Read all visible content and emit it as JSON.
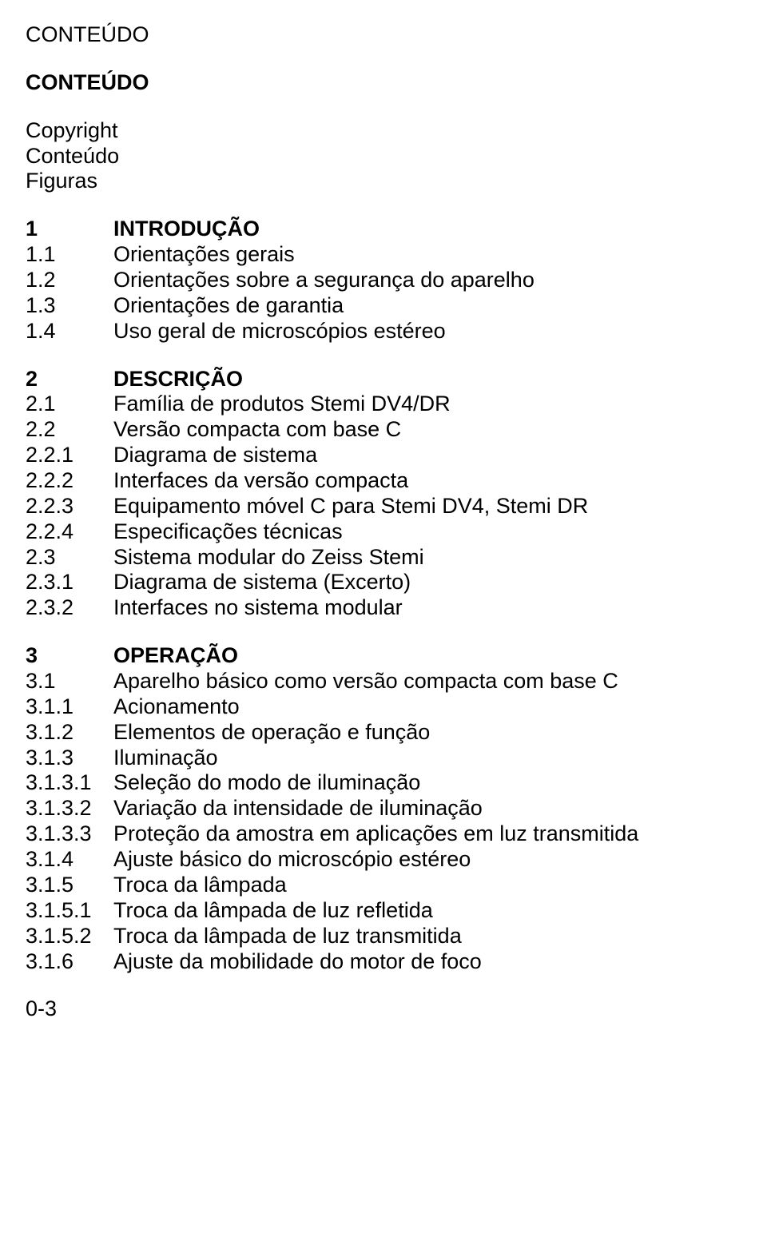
{
  "header1": "CONTEÚDO",
  "header2": "CONTEÚDO",
  "pre": [
    "Copyright",
    "Conteúdo",
    "Figuras"
  ],
  "sections": [
    {
      "rows": [
        {
          "n": "1",
          "t": "INTRODUÇÃO",
          "bold": true
        },
        {
          "n": "1.1",
          "t": "Orientações gerais"
        },
        {
          "n": "1.2",
          "t": "Orientações sobre a segurança do aparelho"
        },
        {
          "n": "1.3",
          "t": "Orientações de garantia"
        },
        {
          "n": "1.4",
          "t": "Uso geral de microscópios estéreo"
        }
      ]
    },
    {
      "rows": [
        {
          "n": "2",
          "t": "DESCRIÇÃO",
          "bold": true
        },
        {
          "n": "2.1",
          "t": "Família de produtos Stemi DV4/DR"
        },
        {
          "n": "2.2",
          "t": "Versão compacta com base C"
        },
        {
          "n": "2.2.1",
          "t": "Diagrama de sistema"
        },
        {
          "n": "2.2.2",
          "t": "Interfaces da versão compacta"
        },
        {
          "n": "2.2.3",
          "t": "Equipamento móvel C para Stemi DV4, Stemi DR"
        },
        {
          "n": "2.2.4",
          "t": "Especificações técnicas"
        },
        {
          "n": "2.3",
          "t": "Sistema modular do Zeiss Stemi"
        },
        {
          "n": "2.3.1",
          "t": "Diagrama de sistema (Excerto)"
        },
        {
          "n": "2.3.2",
          "t": "Interfaces no sistema modular"
        }
      ]
    },
    {
      "rows": [
        {
          "n": "3",
          "t": "OPERAÇÃO",
          "bold": true
        },
        {
          "n": "3.1",
          "t": "Aparelho básico como versão compacta com base C"
        },
        {
          "n": "3.1.1",
          "t": "Acionamento"
        },
        {
          "n": "3.1.2",
          "t": "Elementos de operação e função"
        },
        {
          "n": "3.1.3",
          "t": "Iluminação"
        },
        {
          "n": "3.1.3.1",
          "t": "Seleção do modo de iluminação"
        },
        {
          "n": "3.1.3.2",
          "t": "Variação da intensidade de iluminação"
        },
        {
          "n": "3.1.3.3",
          "t": "Proteção da amostra em aplicações em luz transmitida"
        },
        {
          "n": "3.1.4",
          "t": "Ajuste básico do microscópio estéreo"
        },
        {
          "n": "3.1.5",
          "t": "Troca da lâmpada"
        },
        {
          "n": "3.1.5.1",
          "t": "Troca da lâmpada de luz refletida"
        },
        {
          "n": "3.1.5.2",
          "t": "Troca da lâmpada de luz transmitida"
        },
        {
          "n": "3.1.6",
          "t": "Ajuste da mobilidade do motor de foco"
        }
      ]
    }
  ],
  "pageNumber": "0-3"
}
